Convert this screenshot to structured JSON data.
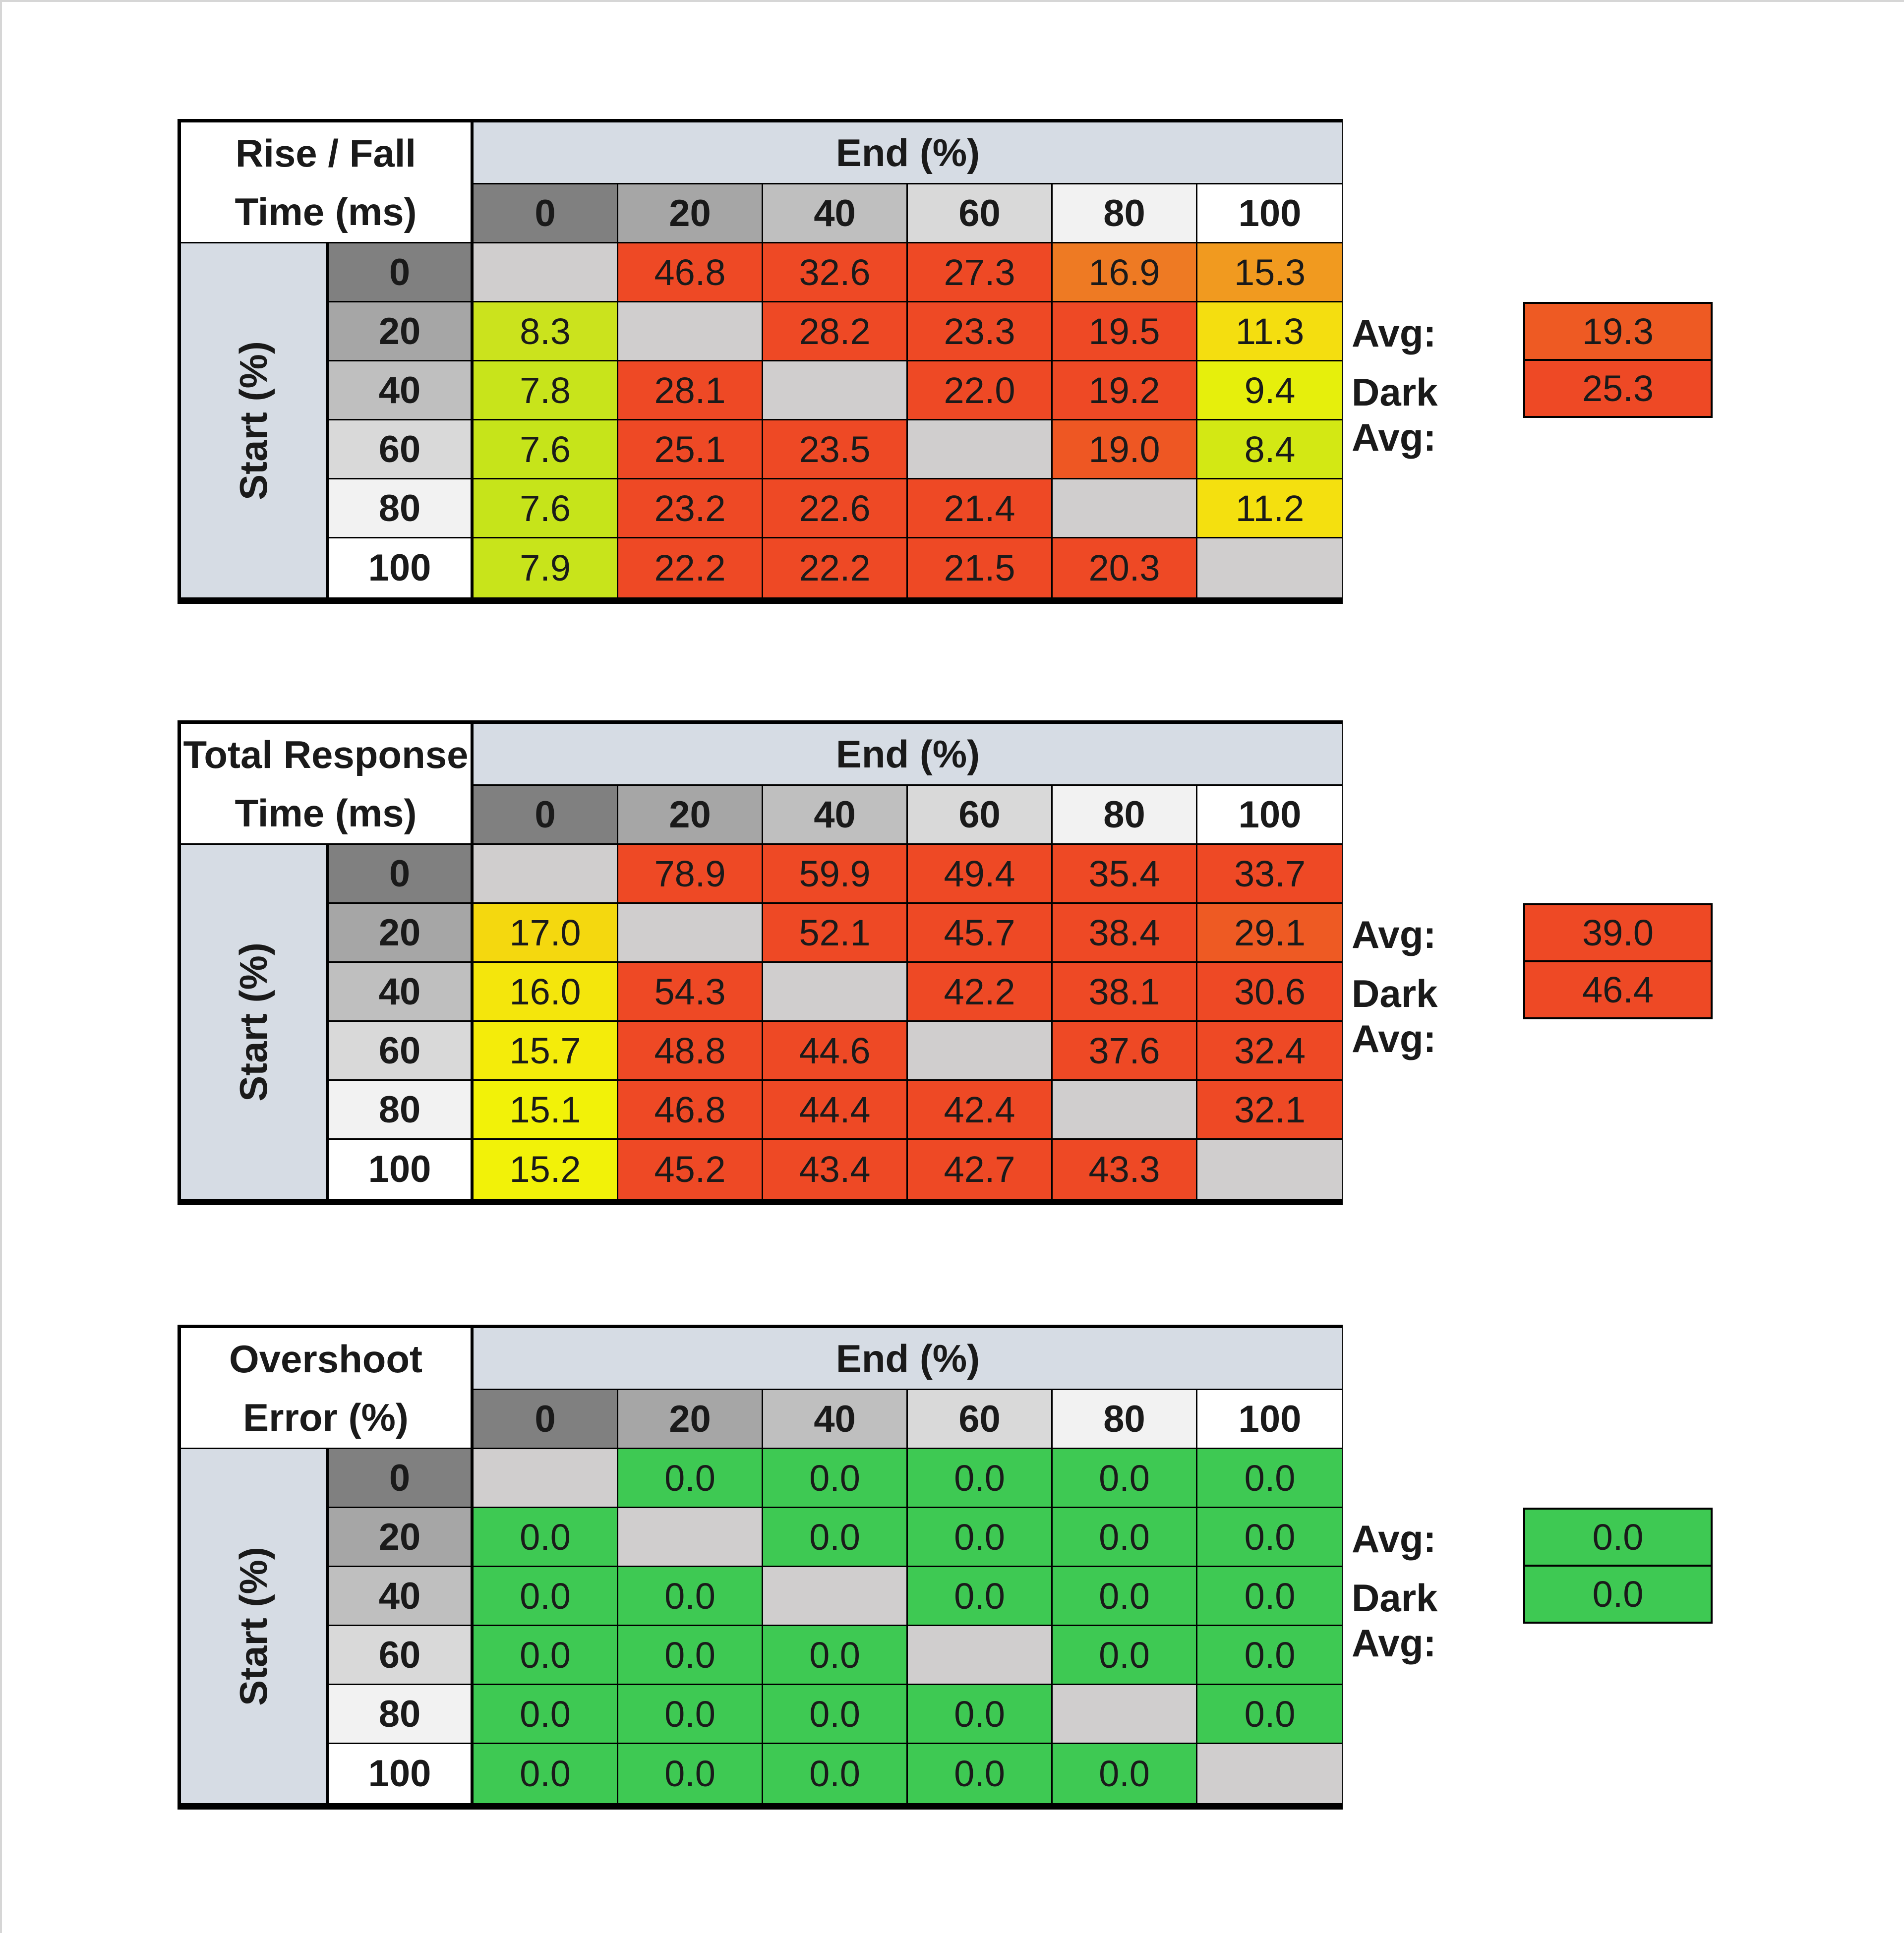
{
  "chart_data": [
    {
      "type": "heatmap",
      "title": "Rise / Fall Time (ms)",
      "title_lines": [
        "Rise / Fall",
        "Time (ms)"
      ],
      "xlabel": "End (%)",
      "ylabel": "Start (%)",
      "x": [
        "0",
        "20",
        "40",
        "60",
        "80",
        "100"
      ],
      "y": [
        "0",
        "20",
        "40",
        "60",
        "80",
        "100"
      ],
      "values": [
        [
          null,
          "46.8",
          "32.6",
          "27.3",
          "16.9",
          "15.3"
        ],
        [
          "8.3",
          null,
          "28.2",
          "23.3",
          "19.5",
          "11.3"
        ],
        [
          "7.8",
          "28.1",
          null,
          "22.0",
          "19.2",
          "9.4"
        ],
        [
          "7.6",
          "25.1",
          "23.5",
          null,
          "19.0",
          "8.4"
        ],
        [
          "7.6",
          "23.2",
          "22.6",
          "21.4",
          null,
          "11.2"
        ],
        [
          "7.9",
          "22.2",
          "22.2",
          "21.5",
          "20.3",
          null
        ]
      ],
      "colors": [
        [
          "#d0cece",
          "#ee4925",
          "#ee4925",
          "#ee4925",
          "#ee7a23",
          "#f19a1f"
        ],
        [
          "#cbe31d",
          "#d0cece",
          "#ee4925",
          "#ee4925",
          "#ee4925",
          "#f4de10"
        ],
        [
          "#c8e41b",
          "#ee4925",
          "#d0cece",
          "#ee4925",
          "#ee4925",
          "#e6ef0c"
        ],
        [
          "#c6e41a",
          "#ee4925",
          "#ee4925",
          "#d0cece",
          "#ee5723",
          "#d3e814"
        ],
        [
          "#c6e41a",
          "#ee4925",
          "#ee4925",
          "#ee4925",
          "#d0cece",
          "#f4e00f"
        ],
        [
          "#c8e41b",
          "#ee4925",
          "#ee4925",
          "#ee4925",
          "#ee4925",
          "#d0cece"
        ]
      ],
      "avg_label": "Avg:",
      "avg": "19.3",
      "avg_color": "#ee5a23",
      "dark_avg_label": "Dark Avg:",
      "dark_avg": "25.3",
      "dark_avg_color": "#ee4925"
    },
    {
      "type": "heatmap",
      "title": "Total Response Time (ms)",
      "title_lines": [
        "Total Response",
        "Time (ms)"
      ],
      "xlabel": "End (%)",
      "ylabel": "Start (%)",
      "x": [
        "0",
        "20",
        "40",
        "60",
        "80",
        "100"
      ],
      "y": [
        "0",
        "20",
        "40",
        "60",
        "80",
        "100"
      ],
      "values": [
        [
          null,
          "78.9",
          "59.9",
          "49.4",
          "35.4",
          "33.7"
        ],
        [
          "17.0",
          null,
          "52.1",
          "45.7",
          "38.4",
          "29.1"
        ],
        [
          "16.0",
          "54.3",
          null,
          "42.2",
          "38.1",
          "30.6"
        ],
        [
          "15.7",
          "48.8",
          "44.6",
          null,
          "37.6",
          "32.4"
        ],
        [
          "15.1",
          "46.8",
          "44.4",
          "42.4",
          null,
          "32.1"
        ],
        [
          "15.2",
          "45.2",
          "43.4",
          "42.7",
          "43.3",
          null
        ]
      ],
      "colors": [
        [
          "#d0cece",
          "#ee4925",
          "#ee4925",
          "#ee4925",
          "#ee4925",
          "#ee4925"
        ],
        [
          "#f4d80f",
          "#d0cece",
          "#ee4925",
          "#ee4925",
          "#ee4925",
          "#ee5a23"
        ],
        [
          "#f4e60c",
          "#ee4925",
          "#d0cece",
          "#ee4925",
          "#ee4925",
          "#ee4925"
        ],
        [
          "#f4ec0a",
          "#ee4925",
          "#ee4925",
          "#d0cece",
          "#ee4925",
          "#ee4925"
        ],
        [
          "#f2f208",
          "#ee4925",
          "#ee4925",
          "#ee4925",
          "#d0cece",
          "#ee4925"
        ],
        [
          "#f2f208",
          "#ee4925",
          "#ee4925",
          "#ee4925",
          "#ee4925",
          "#d0cece"
        ]
      ],
      "avg_label": "Avg:",
      "avg": "39.0",
      "avg_color": "#ee4925",
      "dark_avg_label": "Dark Avg:",
      "dark_avg": "46.4",
      "dark_avg_color": "#ee4925"
    },
    {
      "type": "heatmap",
      "title": "Overshoot Error (%)",
      "title_lines": [
        "Overshoot",
        "Error (%)"
      ],
      "xlabel": "End (%)",
      "ylabel": "Start (%)",
      "x": [
        "0",
        "20",
        "40",
        "60",
        "80",
        "100"
      ],
      "y": [
        "0",
        "20",
        "40",
        "60",
        "80",
        "100"
      ],
      "values": [
        [
          null,
          "0.0",
          "0.0",
          "0.0",
          "0.0",
          "0.0"
        ],
        [
          "0.0",
          null,
          "0.0",
          "0.0",
          "0.0",
          "0.0"
        ],
        [
          "0.0",
          "0.0",
          null,
          "0.0",
          "0.0",
          "0.0"
        ],
        [
          "0.0",
          "0.0",
          "0.0",
          null,
          "0.0",
          "0.0"
        ],
        [
          "0.0",
          "0.0",
          "0.0",
          "0.0",
          null,
          "0.0"
        ],
        [
          "0.0",
          "0.0",
          "0.0",
          "0.0",
          "0.0",
          null
        ]
      ],
      "colors": [
        [
          "#d0cece",
          "#3ec953",
          "#3ec953",
          "#3ec953",
          "#3ec953",
          "#3ec953"
        ],
        [
          "#3ec953",
          "#d0cece",
          "#3ec953",
          "#3ec953",
          "#3ec953",
          "#3ec953"
        ],
        [
          "#3ec953",
          "#3ec953",
          "#d0cece",
          "#3ec953",
          "#3ec953",
          "#3ec953"
        ],
        [
          "#3ec953",
          "#3ec953",
          "#3ec953",
          "#d0cece",
          "#3ec953",
          "#3ec953"
        ],
        [
          "#3ec953",
          "#3ec953",
          "#3ec953",
          "#3ec953",
          "#d0cece",
          "#3ec953"
        ],
        [
          "#3ec953",
          "#3ec953",
          "#3ec953",
          "#3ec953",
          "#3ec953",
          "#d0cece"
        ]
      ],
      "avg_label": "Avg:",
      "avg": "0.0",
      "avg_color": "#3ec953",
      "dark_avg_label": "Dark Avg:",
      "dark_avg": "0.0",
      "dark_avg_color": "#3ec953"
    }
  ],
  "header_shades": [
    "#808080",
    "#a6a6a6",
    "#bfbfbf",
    "#d9d9d9",
    "#f2f2f2",
    "#ffffff"
  ]
}
